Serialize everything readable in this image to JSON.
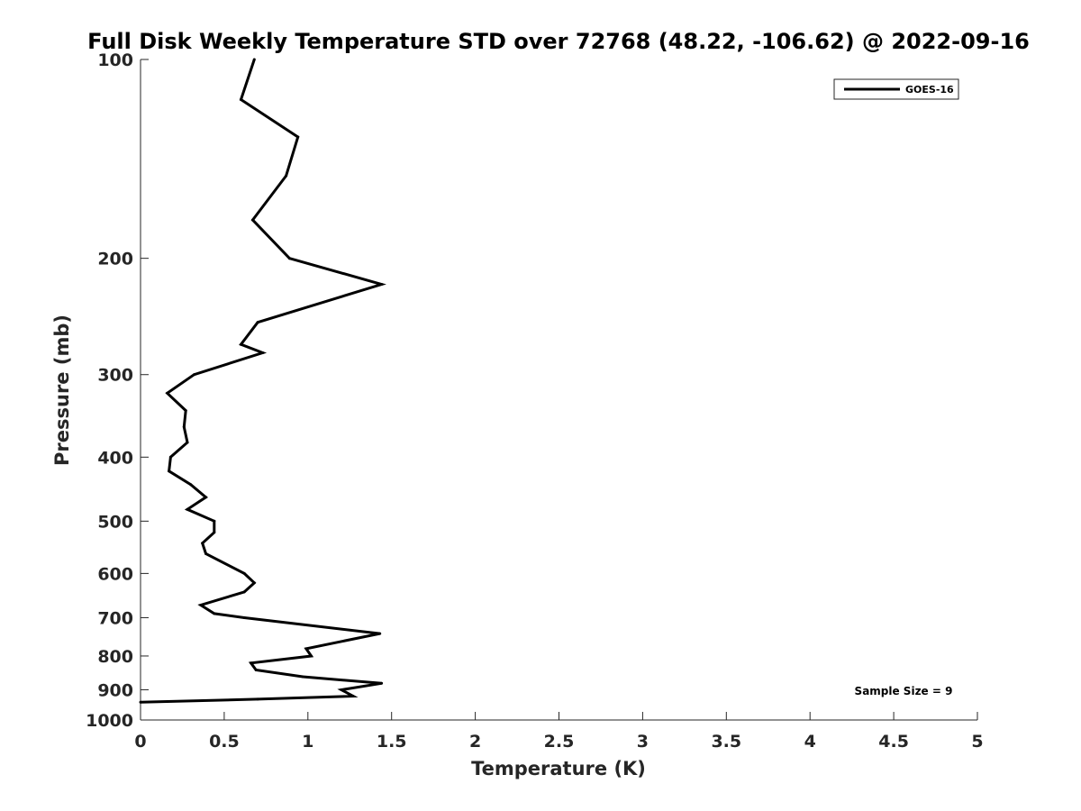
{
  "chart_data": {
    "type": "line",
    "title": "Full Disk Weekly Temperature STD over 72768 (48.22, -106.62) @ 2022-09-16",
    "xlabel": "Temperature (K)",
    "ylabel": "Pressure (mb)",
    "xlim": [
      0,
      5
    ],
    "ylim": [
      1000,
      100
    ],
    "y_scale": "log",
    "y_reversed": true,
    "x_ticks": [
      "0",
      "0.5",
      "1",
      "1.5",
      "2",
      "2.5",
      "3",
      "3.5",
      "4",
      "4.5",
      "5"
    ],
    "x_tick_values": [
      0,
      0.5,
      1,
      1.5,
      2,
      2.5,
      3,
      3.5,
      4,
      4.5,
      5
    ],
    "y_ticks": [
      "100",
      "200",
      "300",
      "400",
      "500",
      "600",
      "700",
      "800",
      "900",
      "1000"
    ],
    "y_tick_values": [
      100,
      200,
      300,
      400,
      500,
      600,
      700,
      800,
      900,
      1000
    ],
    "grid": false,
    "legend_position": "top-right",
    "annotation": "Sample Size = 9",
    "series": [
      {
        "name": "GOES-16",
        "color": "#000000",
        "points": [
          [
            0.68,
            100
          ],
          [
            0.6,
            115
          ],
          [
            0.94,
            131
          ],
          [
            0.87,
            150
          ],
          [
            0.67,
            175
          ],
          [
            0.89,
            200
          ],
          [
            1.44,
            219
          ],
          [
            0.7,
            250
          ],
          [
            0.6,
            270
          ],
          [
            0.73,
            278
          ],
          [
            0.32,
            300
          ],
          [
            0.16,
            320
          ],
          [
            0.27,
            340
          ],
          [
            0.26,
            360
          ],
          [
            0.28,
            380
          ],
          [
            0.18,
            400
          ],
          [
            0.17,
            420
          ],
          [
            0.3,
            440
          ],
          [
            0.39,
            460
          ],
          [
            0.28,
            480
          ],
          [
            0.44,
            500
          ],
          [
            0.44,
            520
          ],
          [
            0.37,
            540
          ],
          [
            0.39,
            560
          ],
          [
            0.62,
            600
          ],
          [
            0.68,
            620
          ],
          [
            0.62,
            640
          ],
          [
            0.36,
            670
          ],
          [
            0.44,
            690
          ],
          [
            0.62,
            700
          ],
          [
            1.43,
            740
          ],
          [
            0.99,
            780
          ],
          [
            1.02,
            800
          ],
          [
            0.66,
            820
          ],
          [
            0.69,
            840
          ],
          [
            0.97,
            860
          ],
          [
            1.44,
            880
          ],
          [
            1.2,
            900
          ],
          [
            1.27,
            920
          ],
          [
            0.7,
            930
          ],
          [
            0.0,
            940
          ]
        ]
      }
    ]
  }
}
